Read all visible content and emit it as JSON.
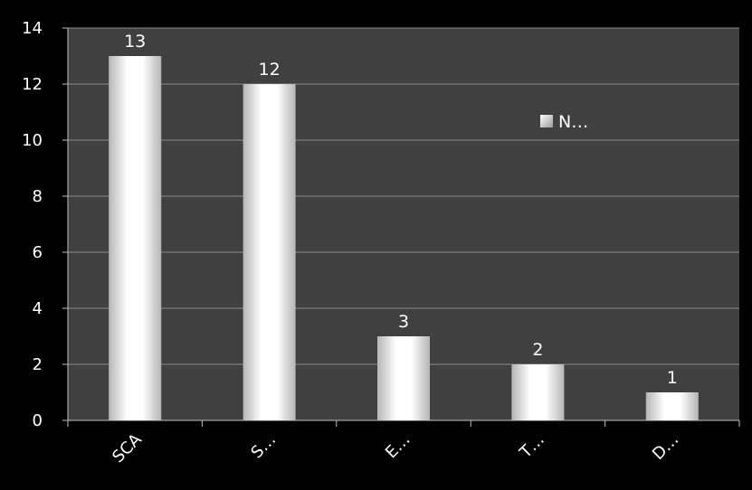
{
  "chart_data": {
    "type": "bar",
    "title": "",
    "xlabel": "",
    "ylabel": "",
    "categories": [
      "SCA",
      "S…",
      "E…",
      "T…",
      "D…"
    ],
    "series": [
      {
        "name": "N…",
        "values": [
          13,
          12,
          3,
          2,
          1
        ]
      }
    ],
    "ylim": [
      0,
      14
    ],
    "yticks": [
      "0",
      "2",
      "4",
      "6",
      "8",
      "10",
      "12",
      "14"
    ],
    "grid": true,
    "legend_position": "top-right",
    "colors": {
      "frame": "#000000",
      "plot_background": "#404040",
      "gridline": "#8a8a8a",
      "axis": "#bfbfbf",
      "text": "#ffffff",
      "bar_light": "#ffffff",
      "bar_dark": "#b5b5b5"
    }
  }
}
